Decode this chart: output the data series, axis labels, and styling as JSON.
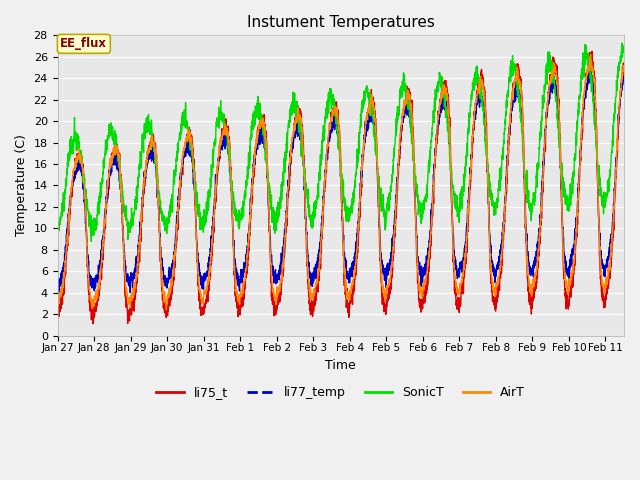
{
  "title": "Instument Temperatures",
  "xlabel": "Time",
  "ylabel": "Temperature (C)",
  "ylim": [
    0,
    28
  ],
  "yticks": [
    0,
    2,
    4,
    6,
    8,
    10,
    12,
    14,
    16,
    18,
    20,
    22,
    24,
    26,
    28
  ],
  "annotation": "EE_flux",
  "bg_color": "#e8e8e8",
  "fig_bg_color": "#f0f0f0",
  "line_colors": {
    "li75_t": "#dd0000",
    "li77_temp": "#0000cc",
    "SonicT": "#00dd00",
    "AirT": "#ff8800"
  },
  "xtick_labels": [
    "Jan 27",
    "Jan 28",
    "Jan 29",
    "Jan 30",
    "Jan 31",
    "Feb 1",
    "Feb 2",
    "Feb 3",
    "Feb 4",
    "Feb 5",
    "Feb 6",
    "Feb 7",
    "Feb 8",
    "Feb 9",
    "Feb 10",
    "Feb 11"
  ],
  "xtick_positions": [
    0,
    1,
    2,
    3,
    4,
    5,
    6,
    7,
    8,
    9,
    10,
    11,
    12,
    13,
    14,
    15
  ]
}
